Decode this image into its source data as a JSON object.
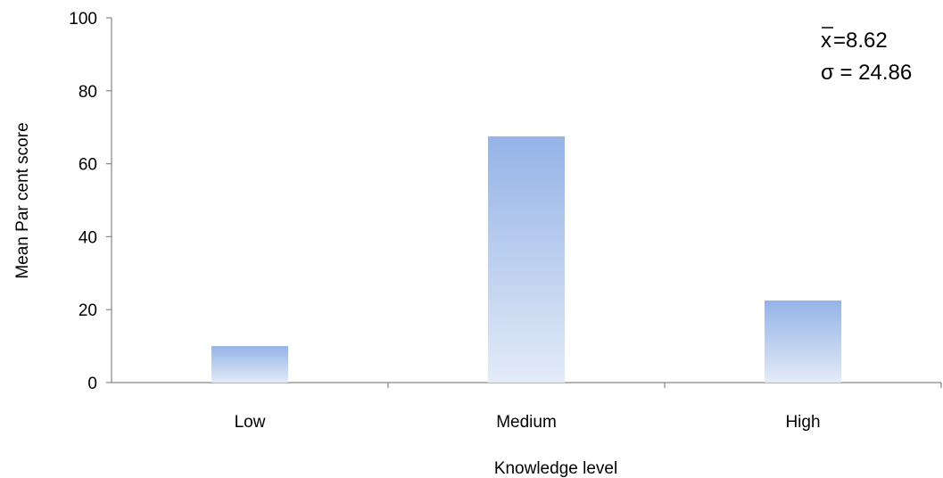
{
  "chart_data": {
    "type": "bar",
    "categories": [
      "Low",
      "Medium",
      "High"
    ],
    "values": [
      10,
      67.5,
      22.5
    ],
    "title": "",
    "xlabel": "Knowledge level",
    "ylabel": "Mean Par cent  score",
    "ylim": [
      0,
      100
    ],
    "yticks": [
      0,
      20,
      40,
      60,
      80,
      100
    ],
    "grid": false,
    "bar_gradient_top": "#95b3e7",
    "bar_gradient_bottom": "#e3ebf7",
    "axis_color": "#868686",
    "annotations": {
      "mean_symbol": "x",
      "mean_value": "=8.62",
      "sigma_text": "σ = 24.86"
    }
  }
}
